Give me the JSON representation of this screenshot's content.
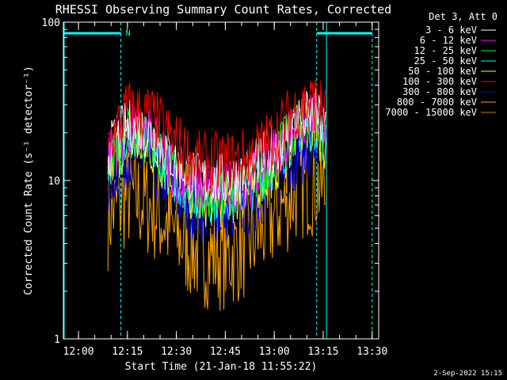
{
  "chart_data": {
    "type": "line",
    "title": "RHESSI Observing Summary Count Rates, Corrected",
    "xlabel": "Start Time (21-Jan-18 11:55:22)",
    "ylabel": "Corrected Count Rate (s⁻¹ detector⁻¹)",
    "y_scale": "log",
    "ylim": [
      1,
      100
    ],
    "y_ticks": [
      {
        "value": 1,
        "label": "1"
      },
      {
        "value": 10,
        "label": "10"
      },
      {
        "value": 100,
        "label": "100"
      }
    ],
    "xlim": [
      "11:55:22",
      "13:32:00"
    ],
    "x_ticks": [
      "12:00",
      "12:15",
      "12:30",
      "12:45",
      "13:00",
      "13:15",
      "13:30"
    ],
    "legend_title": "Det 3, Att 0",
    "legend_position": "right",
    "series": [
      {
        "name": "3 - 6 keV",
        "color": "#ffffff",
        "x": [
          "12:09",
          "12:15",
          "12:22",
          "12:30",
          "12:37",
          "12:45",
          "12:52",
          "13:00",
          "13:07",
          "13:13",
          "13:16"
        ],
        "y": [
          15,
          22,
          20,
          13,
          10,
          10,
          11,
          16,
          24,
          26,
          20
        ]
      },
      {
        "name": "6 - 12 keV",
        "color": "#ff00ff",
        "x": [
          "12:09",
          "12:15",
          "12:22",
          "12:30",
          "12:37",
          "12:45",
          "12:52",
          "13:00",
          "13:07",
          "13:13",
          "13:16"
        ],
        "y": [
          14,
          21,
          19,
          11,
          9,
          9,
          10,
          15,
          23,
          25,
          19
        ]
      },
      {
        "name": "12 - 25 keV",
        "color": "#00ff00",
        "x": [
          "12:09",
          "12:15",
          "12:22",
          "12:30",
          "12:37",
          "12:45",
          "12:52",
          "13:00",
          "13:07",
          "13:13",
          "13:16"
        ],
        "y": [
          13,
          20,
          18,
          11,
          8.5,
          8.5,
          9.5,
          14,
          22,
          24,
          18
        ]
      },
      {
        "name": "25 - 50 keV",
        "color": "#00ffff",
        "x": [
          "12:09",
          "12:15",
          "12:22",
          "12:30",
          "12:37",
          "12:45",
          "12:52",
          "13:00",
          "13:07",
          "13:13",
          "13:16"
        ],
        "y": [
          13,
          19,
          17,
          10,
          8,
          8,
          9,
          13,
          21,
          23,
          17
        ]
      },
      {
        "name": "50 - 100 keV",
        "color": "#ffff00",
        "x": [
          "12:09",
          "12:15",
          "12:22",
          "12:30",
          "12:37",
          "12:45",
          "12:52",
          "13:00",
          "13:07",
          "13:13",
          "13:16"
        ],
        "y": [
          12,
          18,
          16,
          10,
          7.5,
          7.5,
          8.5,
          12,
          20,
          22,
          16
        ]
      },
      {
        "name": "100 - 300 keV",
        "color": "#ff0000",
        "x": [
          "12:09",
          "12:15",
          "12:22",
          "12:30",
          "12:37",
          "12:45",
          "12:52",
          "13:00",
          "13:07",
          "13:13",
          "13:16"
        ],
        "y": [
          17,
          28,
          26,
          17,
          13,
          13,
          14,
          19,
          29,
          32,
          25
        ]
      },
      {
        "name": "300 - 800 keV",
        "color": "#0000ff",
        "x": [
          "12:09",
          "12:15",
          "12:22",
          "12:30",
          "12:37",
          "12:45",
          "12:52",
          "13:00",
          "13:07",
          "13:13",
          "13:16"
        ],
        "y": [
          10,
          15,
          13,
          8,
          6.5,
          6.5,
          7,
          10,
          15,
          17,
          13
        ]
      },
      {
        "name": "800 - 7000 keV",
        "color": "#ffa500",
        "x": [
          "12:09",
          "12:15",
          "12:22",
          "12:30",
          "12:37",
          "12:45",
          "12:52",
          "13:00",
          "13:07",
          "13:13",
          "13:16"
        ],
        "y": [
          6,
          8,
          7,
          4.5,
          3.5,
          3.3,
          4,
          6,
          9,
          10,
          8
        ]
      },
      {
        "name": "7000 - 15000 keV",
        "color": "#b8860b",
        "x": [],
        "y": []
      }
    ],
    "annotations": [
      {
        "text": "N",
        "color": "#00ffff"
      }
    ],
    "night_intervals": [
      [
        "11:55:22",
        "12:13:00"
      ],
      [
        "13:13:00",
        "13:30:00"
      ]
    ],
    "saa_lines": [
      "12:13:00",
      "13:13:00",
      "13:16:00",
      "13:30:00"
    ],
    "footer_date": "2-Sep-2022 15:15"
  }
}
